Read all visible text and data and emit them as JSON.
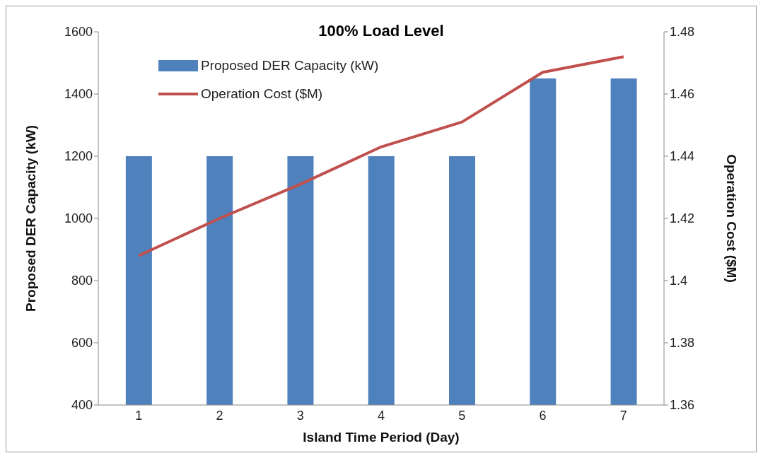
{
  "chart_data": {
    "type": "bar",
    "title": "100% Load Level",
    "xlabel": "Island Time Period (Day)",
    "ylabel": "Proposed DER Capacity (kW)",
    "y2label": "Operation Cost ($M)",
    "categories": [
      "1",
      "2",
      "3",
      "4",
      "5",
      "6",
      "7"
    ],
    "series": [
      {
        "name": "Proposed DER Capacity (kW)",
        "color": "#4f81bd",
        "values": [
          1200,
          1200,
          1200,
          1200,
          1200,
          1450,
          1450
        ]
      },
      {
        "name": "Operation Cost ($M)",
        "type": "line",
        "axis": "y2",
        "color": "#c0504d",
        "marker": "none",
        "values": [
          1.408,
          1.42,
          1.431,
          1.443,
          1.451,
          1.467,
          1.472
        ]
      }
    ],
    "ylim": [
      400,
      1600
    ],
    "yticks": [
      400,
      600,
      800,
      1000,
      1200,
      1400,
      1600
    ],
    "y2lim": [
      1.36,
      1.48
    ],
    "y2ticks": [
      1.36,
      1.38,
      1.4,
      1.42,
      1.44,
      1.46,
      1.48
    ],
    "grid": false,
    "legend": "top left"
  }
}
